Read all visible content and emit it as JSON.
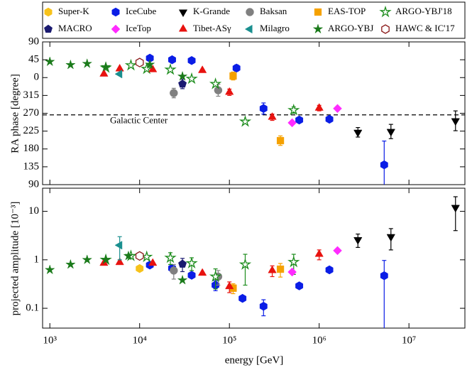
{
  "chart_data": [
    {
      "type": "scatter",
      "y_label": "RA phase [degree]",
      "legend": "top",
      "xscale": "log",
      "xlim": [
        830,
        42000000
      ],
      "xticks": [
        {
          "value": 1000,
          "label": "10³"
        },
        {
          "value": 10000,
          "label": "10⁴"
        },
        {
          "value": 100000,
          "label": "10⁵"
        },
        {
          "value": 1000000,
          "label": "10⁶"
        },
        {
          "value": 10000000,
          "label": "10⁷"
        }
      ],
      "ylim": [
        -270,
        90
      ],
      "yticks": [
        90,
        45,
        0,
        {
          "value": -45,
          "label": "315"
        },
        {
          "value": -90,
          "label": "270"
        },
        {
          "value": -135,
          "label": "225"
        },
        {
          "value": -180,
          "label": "180"
        },
        {
          "value": -225,
          "label": "135"
        },
        {
          "value": -270,
          "label": "90"
        }
      ],
      "reference_line": {
        "value": -94,
        "label": "Galactic Center"
      },
      "series": [
        {
          "name": "Super-K",
          "color": "#f7c21a",
          "marker": "hexagon",
          "hollow": false,
          "x": [
            10000
          ],
          "values": [
            null
          ],
          "errors": [
            null
          ]
        },
        {
          "name": "IceCube",
          "color": "#0a1de6",
          "marker": "hexagon",
          "hollow": false,
          "x": [
            13000,
            23000,
            38000,
            120000,
            240000,
            600000,
            1300000,
            5300000
          ],
          "values": [
            49,
            45,
            43,
            24,
            -78,
            -107,
            -105,
            -220
          ],
          "errors": [
            null,
            null,
            null,
            8,
            14,
            null,
            null,
            60
          ]
        },
        {
          "name": "K-Grande",
          "color": "#000000",
          "marker": "tri-down",
          "hollow": false,
          "x": [
            2700000,
            6300000,
            33000000
          ],
          "values": [
            -138,
            -136,
            -109
          ],
          "errors": [
            12,
            18,
            25
          ]
        },
        {
          "name": "Baksan",
          "color": "#808080",
          "marker": "circle",
          "hollow": false,
          "x": [
            24000,
            75000
          ],
          "values": [
            -39,
            -32
          ],
          "errors": [
            12,
            15
          ]
        },
        {
          "name": "EAS-TOP",
          "color": "#f5a100",
          "marker": "square",
          "hollow": false,
          "x": [
            110000,
            370000
          ],
          "values": [
            4,
            -159
          ],
          "errors": [
            10,
            12
          ]
        },
        {
          "name": "ARGO-YBJ'18",
          "color": "#1c8c1c",
          "marker": "star",
          "hollow": true,
          "x": [
            4200,
            8000,
            12000,
            22000,
            38000,
            70000,
            150000,
            520000
          ],
          "values": [
            25,
            31,
            22,
            20,
            -3,
            -16,
            -111,
            -82
          ],
          "errors": [
            null,
            null,
            null,
            null,
            null,
            null,
            null,
            8
          ]
        },
        {
          "name": "MACRO",
          "color": "#1a1a70",
          "marker": "pentagon",
          "hollow": false,
          "x": [
            30000
          ],
          "values": [
            -16
          ],
          "errors": [
            12
          ]
        },
        {
          "name": "IceTop",
          "color": "#ff2bff",
          "marker": "diamond",
          "hollow": false,
          "x": [
            500000,
            1600000
          ],
          "values": [
            -114,
            -78
          ],
          "errors": [
            null,
            null
          ]
        },
        {
          "name": "Tibet-ASγ",
          "color": "#e8120f",
          "marker": "tri-up",
          "hollow": false,
          "x": [
            4000,
            6000,
            14000,
            50000,
            100000,
            300000,
            1000000
          ],
          "values": [
            9,
            22,
            20,
            18,
            -37,
            -100,
            -77
          ],
          "errors": [
            null,
            null,
            null,
            null,
            8,
            8,
            7
          ]
        },
        {
          "name": "Milagro",
          "color": "#1a8f8f",
          "marker": "tri-left",
          "hollow": false,
          "x": [
            6000
          ],
          "values": [
            9
          ],
          "errors": [
            null
          ]
        },
        {
          "name": "ARGO-YBJ",
          "color": "#1a7a1a",
          "marker": "star",
          "hollow": false,
          "x": [
            1000,
            1700,
            2600,
            4200,
            13000,
            30000
          ],
          "values": [
            40,
            32,
            35,
            27,
            33,
            3
          ],
          "errors": [
            null,
            null,
            null,
            null,
            null,
            null
          ]
        },
        {
          "name": "HAWC & IC'17",
          "color": "#8b1a1a",
          "marker": "hexagon",
          "hollow": true,
          "x": [
            10000
          ],
          "values": [
            38
          ],
          "errors": [
            null
          ]
        }
      ]
    },
    {
      "type": "scatter",
      "y_label": "projected amplitude [10⁻³]",
      "x_label": "energy [GeV]",
      "xscale": "log",
      "yscale": "log",
      "xlim": [
        830,
        42000000
      ],
      "xticks": [
        {
          "value": 1000,
          "label": "10³"
        },
        {
          "value": 10000,
          "label": "10⁴"
        },
        {
          "value": 100000,
          "label": "10⁵"
        },
        {
          "value": 1000000,
          "label": "10⁶"
        },
        {
          "value": 10000000,
          "label": "10⁷"
        }
      ],
      "ylim": [
        0.039,
        30
      ],
      "yticks": [
        0.1,
        1,
        10
      ],
      "series": [
        {
          "color": "#f7c21a",
          "marker": "hexagon",
          "hollow": false,
          "x": [
            10000
          ],
          "values": [
            0.66
          ],
          "errors": [
            null
          ]
        },
        {
          "color": "#0a1de6",
          "marker": "hexagon",
          "hollow": false,
          "x": [
            13000,
            23000,
            38000,
            70000,
            140000,
            240000,
            600000,
            1300000,
            5300000
          ],
          "values": [
            0.78,
            0.67,
            0.48,
            0.3,
            0.16,
            0.11,
            0.29,
            0.62,
            0.47
          ],
          "errors": [
            null,
            null,
            null,
            0.07,
            null,
            0.04,
            null,
            null,
            0.5
          ]
        },
        {
          "color": "#000000",
          "marker": "tri-down",
          "hollow": false,
          "x": [
            2700000,
            6300000,
            33000000
          ],
          "values": [
            2.6,
            3.0,
            12
          ],
          "errors": [
            0.8,
            1.4,
            8
          ]
        },
        {
          "color": "#808080",
          "marker": "circle",
          "hollow": false,
          "x": [
            24000,
            75000
          ],
          "values": [
            0.6,
            0.45
          ],
          "errors": [
            0.2,
            0.15
          ]
        },
        {
          "color": "#f5a100",
          "marker": "square",
          "hollow": false,
          "x": [
            110000,
            370000
          ],
          "values": [
            0.26,
            0.64
          ],
          "errors": [
            0.06,
            0.2
          ]
        },
        {
          "color": "#1c8c1c",
          "marker": "star",
          "hollow": true,
          "x": [
            4200,
            8000,
            12000,
            22000,
            38000,
            70000,
            150000,
            520000
          ],
          "values": [
            1.0,
            1.2,
            1.15,
            1.1,
            0.85,
            0.45,
            0.8,
            0.9
          ],
          "errors": [
            null,
            null,
            null,
            0.3,
            0.25,
            0.2,
            0.5,
            0.4
          ]
        },
        {
          "color": "#1a1a70",
          "marker": "pentagon",
          "hollow": false,
          "x": [
            30000
          ],
          "values": [
            0.82
          ],
          "errors": [
            0.25
          ]
        },
        {
          "color": "#ff2bff",
          "marker": "diamond",
          "hollow": false,
          "x": [
            500000,
            1600000
          ],
          "values": [
            0.56,
            1.55
          ],
          "errors": [
            null,
            null
          ]
        },
        {
          "color": "#e8120f",
          "marker": "tri-up",
          "hollow": false,
          "x": [
            4000,
            6000,
            14000,
            50000,
            100000,
            300000,
            1000000
          ],
          "values": [
            0.85,
            0.88,
            0.85,
            0.53,
            0.28,
            0.6,
            1.3
          ],
          "errors": [
            null,
            null,
            null,
            null,
            0.07,
            0.15,
            0.3
          ]
        },
        {
          "color": "#1a8f8f",
          "marker": "tri-left",
          "hollow": false,
          "x": [
            6000
          ],
          "values": [
            2.0
          ],
          "errors": [
            1.0
          ]
        },
        {
          "color": "#1a7a1a",
          "marker": "star",
          "hollow": false,
          "x": [
            1000,
            1700,
            2600,
            4200,
            7500,
            30000
          ],
          "values": [
            0.62,
            0.8,
            1.0,
            1.0,
            1.2,
            0.38
          ],
          "errors": [
            null,
            null,
            null,
            null,
            null,
            null
          ]
        },
        {
          "color": "#8b1a1a",
          "marker": "hexagon",
          "hollow": true,
          "x": [
            10000
          ],
          "values": [
            1.2
          ],
          "errors": [
            null
          ]
        }
      ]
    }
  ]
}
